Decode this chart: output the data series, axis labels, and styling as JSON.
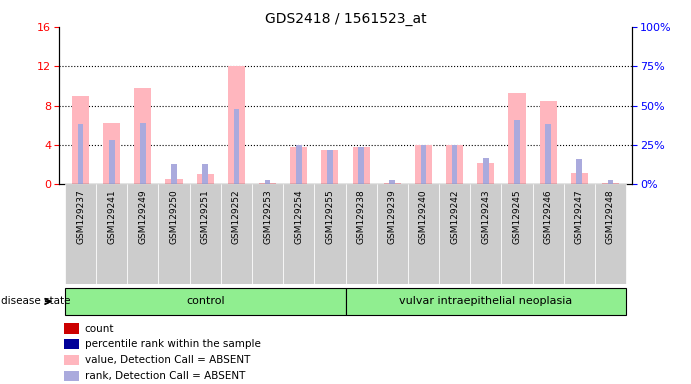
{
  "title": "GDS2418 / 1561523_at",
  "samples": [
    "GSM129237",
    "GSM129241",
    "GSM129249",
    "GSM129250",
    "GSM129251",
    "GSM129252",
    "GSM129253",
    "GSM129254",
    "GSM129255",
    "GSM129238",
    "GSM129239",
    "GSM129240",
    "GSM129242",
    "GSM129243",
    "GSM129245",
    "GSM129246",
    "GSM129247",
    "GSM129248"
  ],
  "value_absent": [
    9.0,
    6.2,
    9.8,
    0.5,
    1.0,
    12.0,
    0.1,
    3.8,
    3.5,
    3.8,
    0.1,
    4.0,
    4.0,
    2.2,
    9.3,
    8.5,
    1.2,
    0.1
  ],
  "rank_absent_pct": [
    38,
    28,
    39,
    13,
    13,
    48,
    3,
    25,
    22,
    24,
    3,
    25,
    25,
    17,
    41,
    38,
    16,
    3
  ],
  "groups": [
    {
      "label": "control",
      "start": 0,
      "end": 9
    },
    {
      "label": "vulvar intraepithelial neoplasia",
      "start": 9,
      "end": 18
    }
  ],
  "ylim_left": [
    0,
    16
  ],
  "ylim_right": [
    0,
    100
  ],
  "yticks_left": [
    0,
    4,
    8,
    12,
    16
  ],
  "yticks_right": [
    0,
    25,
    50,
    75,
    100
  ],
  "color_value_absent": "#FFB6BE",
  "color_rank_absent": "#AAAADD",
  "color_count": "#CC0000",
  "color_percentile": "#000099",
  "group_bg": "#90EE90",
  "xtick_bg": "#CCCCCC",
  "disease_state_label": "disease state"
}
